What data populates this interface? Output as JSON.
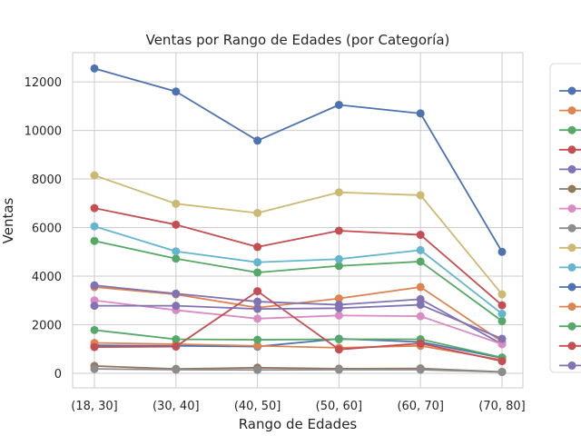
{
  "chart_data": {
    "type": "line",
    "title": "Ventas por Rango de Edades (por Categoría)",
    "xlabel": "Rango de Edades",
    "ylabel": "Ventas",
    "categories": [
      "(18, 30]",
      "(30, 40]",
      "(40, 50]",
      "(50, 60]",
      "(60, 70]",
      "(70, 80]"
    ],
    "yticks": [
      "0",
      "2000",
      "4000",
      "6000",
      "8000",
      "10000",
      "12000"
    ],
    "ylim": [
      -600,
      13200
    ],
    "grid": true,
    "legend_position": "right",
    "series": [
      {
        "color": "#4c72b0",
        "values": [
          12550,
          11600,
          9580,
          11050,
          10700,
          5000
        ]
      },
      {
        "color": "#dd8452",
        "values": [
          3550,
          3250,
          2700,
          3080,
          3550,
          1300
        ]
      },
      {
        "color": "#55a868",
        "values": [
          5450,
          4720,
          4150,
          4420,
          4600,
          2150
        ]
      },
      {
        "color": "#c44e52",
        "values": [
          6800,
          6120,
          5200,
          5870,
          5700,
          2800
        ]
      },
      {
        "color": "#8172b3",
        "values": [
          3620,
          3280,
          2950,
          2820,
          3050,
          1200
        ]
      },
      {
        "color": "#937860",
        "values": [
          300,
          180,
          230,
          190,
          200,
          60
        ]
      },
      {
        "color": "#da8bc3",
        "values": [
          3000,
          2600,
          2250,
          2380,
          2350,
          1200
        ]
      },
      {
        "color": "#8c8c8c",
        "values": [
          180,
          150,
          140,
          150,
          150,
          50
        ]
      },
      {
        "color": "#ccb974",
        "values": [
          8150,
          6980,
          6600,
          7450,
          7330,
          3250
        ]
      },
      {
        "color": "#64b5cd",
        "values": [
          6050,
          5020,
          4570,
          4700,
          5070,
          2450
        ]
      },
      {
        "color": "#4c72b0",
        "values": [
          1150,
          1130,
          1100,
          1420,
          1290,
          630
        ]
      },
      {
        "color": "#dd8452",
        "values": [
          1250,
          1200,
          1130,
          1050,
          1130,
          550
        ]
      },
      {
        "color": "#55a868",
        "values": [
          1780,
          1400,
          1380,
          1400,
          1400,
          650
        ]
      },
      {
        "color": "#c44e52",
        "values": [
          1080,
          1100,
          3380,
          980,
          1230,
          500
        ]
      },
      {
        "color": "#8172b3",
        "values": [
          2780,
          2780,
          2650,
          2680,
          2820,
          1420
        ]
      }
    ]
  }
}
